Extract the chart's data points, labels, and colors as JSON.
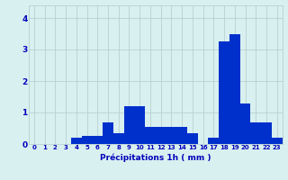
{
  "hours": [
    0,
    1,
    2,
    3,
    4,
    5,
    6,
    7,
    8,
    9,
    10,
    11,
    12,
    13,
    14,
    15,
    16,
    17,
    18,
    19,
    20,
    21,
    22,
    23
  ],
  "values": [
    0,
    0,
    0,
    0,
    0.2,
    0.25,
    0.25,
    0.7,
    0.35,
    1.2,
    1.2,
    0.55,
    0.55,
    0.55,
    0.55,
    0.35,
    0,
    0.2,
    3.25,
    3.5,
    1.3,
    0.7,
    0.7,
    0.2
  ],
  "bar_color": "#0030cc",
  "background_color": "#d8f0f0",
  "grid_color": "#b8d0d0",
  "text_color": "#0000bb",
  "xlabel": "Précipitations 1h ( mm )",
  "ylim": [
    0,
    4.4
  ],
  "yticks": [
    0,
    1,
    2,
    3,
    4
  ],
  "figsize": [
    3.2,
    2.0
  ],
  "dpi": 100
}
